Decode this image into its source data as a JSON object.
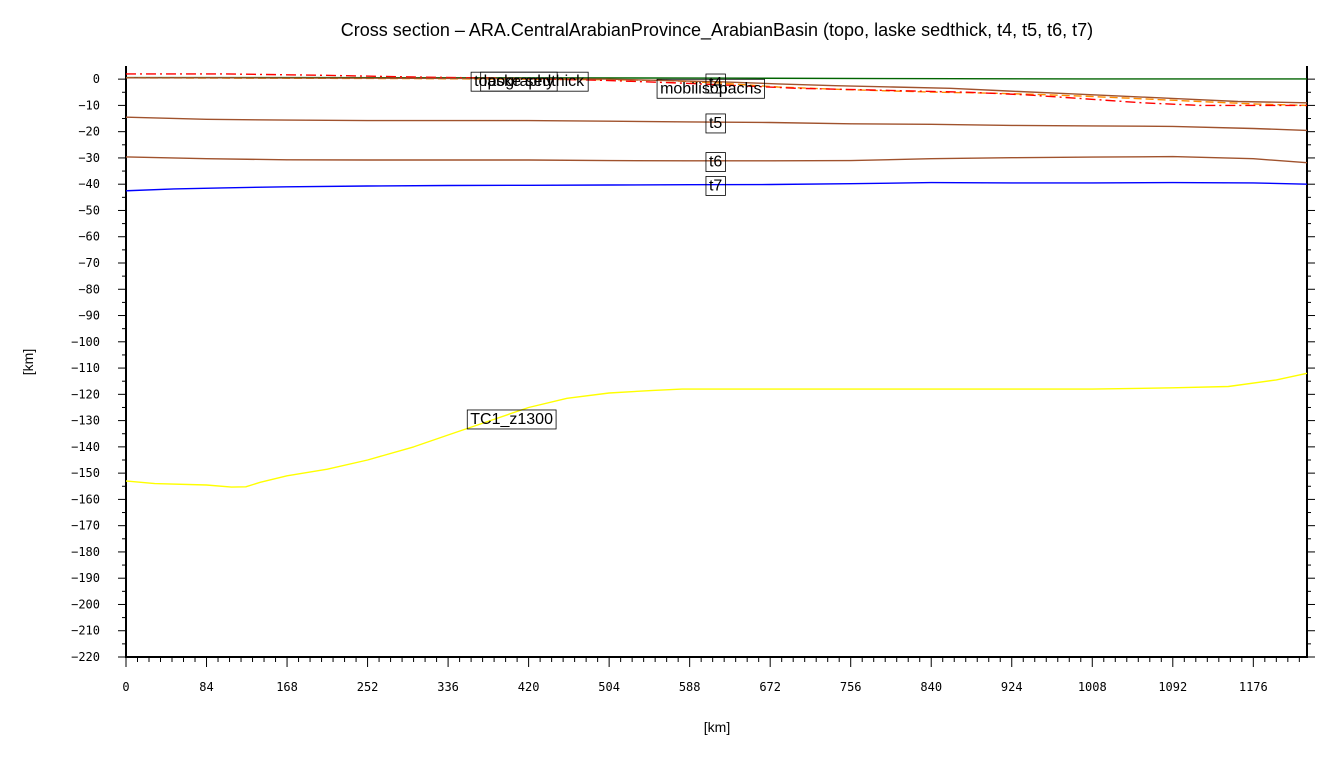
{
  "chart_data": {
    "type": "line",
    "title": "Cross section – ARA.CentralArabianProvince_ArabianBasin (topo, laske sedthick, t4, t5, t6, t7)",
    "xlabel": "[km]",
    "ylabel": "[km]",
    "xlim": [
      0,
      1232
    ],
    "ylim": [
      -220,
      5
    ],
    "xticks": [
      0,
      84,
      168,
      252,
      336,
      420,
      504,
      588,
      672,
      756,
      840,
      924,
      1008,
      1092,
      1176
    ],
    "yticks": [
      0,
      -10,
      -20,
      -30,
      -40,
      -50,
      -60,
      -70,
      -80,
      -90,
      -100,
      -110,
      -120,
      -130,
      -140,
      -150,
      -160,
      -170,
      -180,
      -190,
      -200,
      -210,
      -220
    ],
    "grid": false,
    "series": [
      {
        "name": "topography",
        "color": "#006400",
        "dash": "",
        "x": [
          0,
          200,
          400,
          600,
          800,
          1000,
          1232
        ],
        "y": [
          0.6,
          0.6,
          0.5,
          0.4,
          0.2,
          0.1,
          0.1
        ]
      },
      {
        "name": "laske sedthick",
        "color": "#ff8c00",
        "dash": "8,4",
        "x": [
          0,
          100,
          200,
          300,
          400,
          500,
          560,
          620,
          680,
          750,
          800,
          850,
          900,
          950,
          1000,
          1060,
          1120,
          1180,
          1232
        ],
        "y": [
          0.5,
          0.4,
          0.3,
          0.2,
          0.0,
          -0.2,
          -0.5,
          -1.5,
          -3.0,
          -4.0,
          -4.5,
          -5.0,
          -5.3,
          -5.8,
          -6.5,
          -7.5,
          -8.5,
          -9.5,
          -10.0
        ]
      },
      {
        "name": "mobilisopachs",
        "color": "#ff0000",
        "dash": "10,4,2,4",
        "x": [
          0,
          100,
          200,
          300,
          400,
          500,
          580,
          640,
          700,
          760,
          820,
          880,
          940,
          1000,
          1060,
          1120,
          1180,
          1232
        ],
        "y": [
          2.0,
          2.0,
          1.5,
          0.8,
          0.3,
          -0.5,
          -1.5,
          -2.5,
          -3.5,
          -4.0,
          -4.5,
          -5.0,
          -6.0,
          -7.5,
          -9.0,
          -10.0,
          -10.0,
          -10.0
        ]
      },
      {
        "name": "t4",
        "color": "#a0522d",
        "dash": "",
        "x": [
          0,
          100,
          200,
          300,
          400,
          500,
          560,
          620,
          680,
          740,
          800,
          860,
          920,
          980,
          1040,
          1100,
          1160,
          1232
        ],
        "y": [
          0.5,
          0.5,
          0.4,
          0.3,
          0.2,
          0.0,
          -0.5,
          -1.0,
          -1.8,
          -2.5,
          -3.0,
          -3.5,
          -4.5,
          -5.5,
          -6.5,
          -7.5,
          -8.5,
          -9.0
        ]
      },
      {
        "name": "t5",
        "color": "#a0522d",
        "dash": "",
        "x": [
          0,
          84,
          168,
          252,
          336,
          420,
          504,
          588,
          672,
          756,
          840,
          924,
          1008,
          1092,
          1176,
          1232
        ],
        "y": [
          -14.5,
          -15.3,
          -15.6,
          -15.8,
          -15.8,
          -15.8,
          -16.0,
          -16.3,
          -16.5,
          -17.0,
          -17.2,
          -17.6,
          -17.8,
          -18.0,
          -18.8,
          -19.5
        ]
      },
      {
        "name": "t6",
        "color": "#a0522d",
        "dash": "",
        "x": [
          0,
          84,
          168,
          252,
          336,
          420,
          504,
          588,
          672,
          756,
          840,
          924,
          1008,
          1092,
          1176,
          1232
        ],
        "y": [
          -29.6,
          -30.3,
          -30.7,
          -30.8,
          -30.8,
          -30.8,
          -31.0,
          -31.1,
          -31.1,
          -31.0,
          -30.3,
          -29.9,
          -29.7,
          -29.5,
          -30.3,
          -31.8
        ]
      },
      {
        "name": "t7",
        "color": "#0000ff",
        "dash": "",
        "x": [
          0,
          50,
          100,
          168,
          252,
          336,
          420,
          504,
          588,
          672,
          756,
          840,
          924,
          1008,
          1092,
          1176,
          1232
        ],
        "y": [
          -42.5,
          -41.8,
          -41.4,
          -41.0,
          -40.7,
          -40.5,
          -40.4,
          -40.3,
          -40.2,
          -40.1,
          -39.8,
          -39.4,
          -39.5,
          -39.5,
          -39.4,
          -39.5,
          -40.0
        ]
      },
      {
        "name": "TC1_z1300",
        "color": "#ffff00",
        "dash": "",
        "x": [
          0,
          30,
          84,
          110,
          125,
          140,
          168,
          210,
          252,
          300,
          336,
          380,
          420,
          460,
          504,
          550,
          580,
          672,
          756,
          840,
          924,
          1008,
          1092,
          1150,
          1200,
          1232
        ],
        "y": [
          -153.0,
          -154.0,
          -154.5,
          -155.3,
          -155.2,
          -153.5,
          -151.0,
          -148.5,
          -145.0,
          -140.0,
          -135.5,
          -130.0,
          -125.0,
          -121.5,
          -119.5,
          -118.5,
          -118.0,
          -118.0,
          -118.0,
          -118.0,
          -118.0,
          -118.0,
          -117.5,
          -117.0,
          -114.5,
          -112.0
        ]
      }
    ],
    "annotations": [
      {
        "text": "topography",
        "x": 360,
        "y": -0.4
      },
      {
        "text": "laske sedthick",
        "x": 370,
        "y": -0.4
      },
      {
        "text": "mobilisopachs",
        "x": 554,
        "y": -3.1
      },
      {
        "text": "t4",
        "x": 605,
        "y": -1.1
      },
      {
        "text": "t5",
        "x": 605,
        "y": -16.3
      },
      {
        "text": "t6",
        "x": 605,
        "y": -31.0
      },
      {
        "text": "t7",
        "x": 605,
        "y": -40.1
      },
      {
        "text": "TC1_z1300",
        "x": 356,
        "y": -129.0
      }
    ]
  }
}
